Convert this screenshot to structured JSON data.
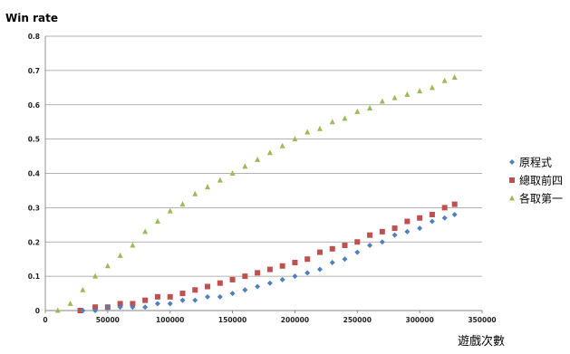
{
  "chart_data": {
    "type": "scatter",
    "title": "",
    "ylabel": "Win rate",
    "xlabel": "遊戲次數",
    "xlim": [
      0,
      350000
    ],
    "ylim": [
      0,
      0.8
    ],
    "x_ticks": [
      "0",
      "50000",
      "100000",
      "150000",
      "200000",
      "250000",
      "300000",
      "350000"
    ],
    "y_ticks": [
      "0",
      "0.1",
      "0.2",
      "0.3",
      "0.4",
      "0.5",
      "0.6",
      "0.7",
      "0.8"
    ],
    "grid": "horizontal",
    "legend_position": "right",
    "series": [
      {
        "name": "原程式",
        "marker": "diamond",
        "color": "#4f81bd",
        "points": [
          [
            30000,
            0.0
          ],
          [
            40000,
            0.0
          ],
          [
            50000,
            0.01
          ],
          [
            60000,
            0.01
          ],
          [
            70000,
            0.01
          ],
          [
            80000,
            0.01
          ],
          [
            90000,
            0.02
          ],
          [
            100000,
            0.02
          ],
          [
            110000,
            0.03
          ],
          [
            120000,
            0.03
          ],
          [
            130000,
            0.04
          ],
          [
            140000,
            0.04
          ],
          [
            150000,
            0.05
          ],
          [
            160000,
            0.06
          ],
          [
            170000,
            0.07
          ],
          [
            180000,
            0.08
          ],
          [
            190000,
            0.09
          ],
          [
            200000,
            0.1
          ],
          [
            210000,
            0.11
          ],
          [
            220000,
            0.12
          ],
          [
            230000,
            0.14
          ],
          [
            240000,
            0.15
          ],
          [
            250000,
            0.17
          ],
          [
            260000,
            0.19
          ],
          [
            270000,
            0.2
          ],
          [
            280000,
            0.22
          ],
          [
            290000,
            0.23
          ],
          [
            300000,
            0.24
          ],
          [
            310000,
            0.26
          ],
          [
            320000,
            0.27
          ],
          [
            328000,
            0.28
          ]
        ]
      },
      {
        "name": "總取前四",
        "marker": "square",
        "color": "#c0504d",
        "points": [
          [
            28000,
            0.0
          ],
          [
            40000,
            0.01
          ],
          [
            50000,
            0.01
          ],
          [
            60000,
            0.02
          ],
          [
            70000,
            0.02
          ],
          [
            80000,
            0.03
          ],
          [
            90000,
            0.04
          ],
          [
            100000,
            0.04
          ],
          [
            110000,
            0.05
          ],
          [
            120000,
            0.06
          ],
          [
            130000,
            0.07
          ],
          [
            140000,
            0.08
          ],
          [
            150000,
            0.09
          ],
          [
            160000,
            0.1
          ],
          [
            170000,
            0.11
          ],
          [
            180000,
            0.12
          ],
          [
            190000,
            0.13
          ],
          [
            200000,
            0.14
          ],
          [
            210000,
            0.15
          ],
          [
            220000,
            0.17
          ],
          [
            230000,
            0.18
          ],
          [
            240000,
            0.19
          ],
          [
            250000,
            0.2
          ],
          [
            260000,
            0.22
          ],
          [
            270000,
            0.23
          ],
          [
            280000,
            0.24
          ],
          [
            290000,
            0.26
          ],
          [
            300000,
            0.27
          ],
          [
            310000,
            0.28
          ],
          [
            320000,
            0.3
          ],
          [
            328000,
            0.31
          ]
        ]
      },
      {
        "name": "各取第一",
        "marker": "triangle",
        "color": "#9bbb59",
        "points": [
          [
            10000,
            0.0
          ],
          [
            20000,
            0.02
          ],
          [
            30000,
            0.06
          ],
          [
            40000,
            0.1
          ],
          [
            50000,
            0.13
          ],
          [
            60000,
            0.16
          ],
          [
            70000,
            0.19
          ],
          [
            80000,
            0.23
          ],
          [
            90000,
            0.26
          ],
          [
            100000,
            0.29
          ],
          [
            110000,
            0.31
          ],
          [
            120000,
            0.34
          ],
          [
            130000,
            0.36
          ],
          [
            140000,
            0.38
          ],
          [
            150000,
            0.4
          ],
          [
            160000,
            0.42
          ],
          [
            170000,
            0.44
          ],
          [
            180000,
            0.46
          ],
          [
            190000,
            0.48
          ],
          [
            200000,
            0.5
          ],
          [
            210000,
            0.52
          ],
          [
            220000,
            0.53
          ],
          [
            230000,
            0.55
          ],
          [
            240000,
            0.56
          ],
          [
            250000,
            0.58
          ],
          [
            260000,
            0.59
          ],
          [
            270000,
            0.61
          ],
          [
            280000,
            0.62
          ],
          [
            290000,
            0.63
          ],
          [
            300000,
            0.64
          ],
          [
            310000,
            0.65
          ],
          [
            320000,
            0.67
          ],
          [
            328000,
            0.68
          ]
        ]
      }
    ]
  }
}
